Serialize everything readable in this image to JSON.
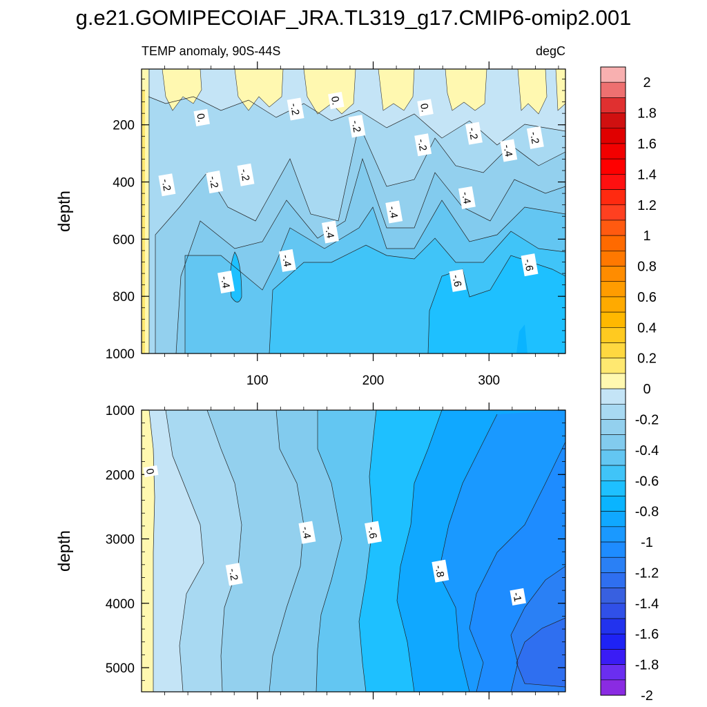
{
  "title": "g.e21.GOMIPECOIAF_JRA.TL319_g17.CMIP6-omip2.001",
  "chart_data": [
    {
      "type": "heatmap",
      "panel": "upper",
      "subtitle_left": "TEMP anomaly, 90S-44S",
      "subtitle_right": "degC",
      "xlabel": "",
      "ylabel": "depth",
      "xlim": [
        0,
        366
      ],
      "ylim": [
        1000,
        5
      ],
      "xticks": [
        100,
        200,
        300
      ],
      "yticks": [
        200,
        400,
        600,
        800,
        1000
      ],
      "contour_labels": [
        {
          "text": "-.2",
          "x": 22,
          "y": 410
        },
        {
          "text": "-.2",
          "x": 63,
          "y": 400
        },
        {
          "text": "-.2",
          "x": 90,
          "y": 375
        },
        {
          "text": "0.",
          "x": 52,
          "y": 175
        },
        {
          "text": "-.2",
          "x": 133,
          "y": 145
        },
        {
          "text": "0.",
          "x": 168,
          "y": 115
        },
        {
          "text": "-.2",
          "x": 186,
          "y": 205
        },
        {
          "text": "0.",
          "x": 245,
          "y": 140
        },
        {
          "text": "-.2",
          "x": 243,
          "y": 270
        },
        {
          "text": "-.2",
          "x": 287,
          "y": 230
        },
        {
          "text": "-.4",
          "x": 317,
          "y": 290
        },
        {
          "text": "-.2",
          "x": 340,
          "y": 245
        },
        {
          "text": "-.4",
          "x": 281,
          "y": 455
        },
        {
          "text": "-.4",
          "x": 218,
          "y": 505
        },
        {
          "text": "-.4",
          "x": 163,
          "y": 575
        },
        {
          "text": "-.4",
          "x": 126,
          "y": 675
        },
        {
          "text": "-.4",
          "x": 73,
          "y": 750
        },
        {
          "text": "-.6",
          "x": 273,
          "y": 745
        },
        {
          "text": "-.6",
          "x": 335,
          "y": 690
        }
      ]
    },
    {
      "type": "heatmap",
      "panel": "lower",
      "subtitle_left": "",
      "subtitle_right": "",
      "xlabel": "",
      "ylabel": "depth",
      "xlim": [
        0,
        366
      ],
      "ylim": [
        5375,
        1000
      ],
      "xticks": [
        100,
        200,
        300
      ],
      "yticks": [
        1000,
        2000,
        3000,
        4000,
        5000
      ],
      "contour_labels": [
        {
          "text": "0",
          "x": 8,
          "y": 1950
        },
        {
          "text": "-.2",
          "x": 80,
          "y": 3550
        },
        {
          "text": "-.4",
          "x": 143,
          "y": 2900
        },
        {
          "text": "-.6",
          "x": 200,
          "y": 2900
        },
        {
          "text": "-.8",
          "x": 258,
          "y": 3500
        },
        {
          "text": "-1",
          "x": 325,
          "y": 3900
        }
      ]
    },
    {
      "type": "colorbar",
      "levels": [
        -2,
        -1.9,
        -1.8,
        -1.7,
        -1.6,
        -1.5,
        -1.4,
        -1.3,
        -1.2,
        -1.1,
        -1,
        -0.9,
        -0.8,
        -0.7,
        -0.6,
        -0.5,
        -0.4,
        -0.3,
        -0.2,
        -0.1,
        0,
        0.1,
        0.2,
        0.3,
        0.4,
        0.5,
        0.6,
        0.7,
        0.8,
        0.9,
        1,
        1.1,
        1.2,
        1.3,
        1.4,
        1.5,
        1.6,
        1.7,
        1.8,
        1.9,
        2
      ],
      "colors": [
        "#8a2be2",
        "#6a2ef0",
        "#3a1cf5",
        "#1e22f5",
        "#2233ee",
        "#3050e8",
        "#3860e0",
        "#2f6ff0",
        "#2a80f5",
        "#1e8cff",
        "#1a99ff",
        "#10a8ff",
        "#0ab4ff",
        "#1ec0ff",
        "#40c4f8",
        "#63c6f2",
        "#82cbee",
        "#93d0ee",
        "#a8d9f2",
        "#c4e4f6",
        "#fff8b0",
        "#ffe870",
        "#ffd840",
        "#ffca20",
        "#ffb800",
        "#ffaa00",
        "#ff9c00",
        "#ff8c00",
        "#ff7800",
        "#ff6a00",
        "#ff5a10",
        "#ff4020",
        "#ff2a10",
        "#ff1010",
        "#ff0000",
        "#f20000",
        "#e00000",
        "#d01010",
        "#e03030",
        "#ee7070",
        "#f8b0b0"
      ],
      "tick_labels": [
        "-2",
        "-1.8",
        "-1.6",
        "-1.4",
        "-1.2",
        "-1",
        "-0.8",
        "-0.6",
        "-0.4",
        "-0.2",
        "0",
        "0.2",
        "0.4",
        "0.6",
        "0.8",
        "1",
        "1.2",
        "1.4",
        "1.6",
        "1.8",
        "2"
      ]
    }
  ]
}
